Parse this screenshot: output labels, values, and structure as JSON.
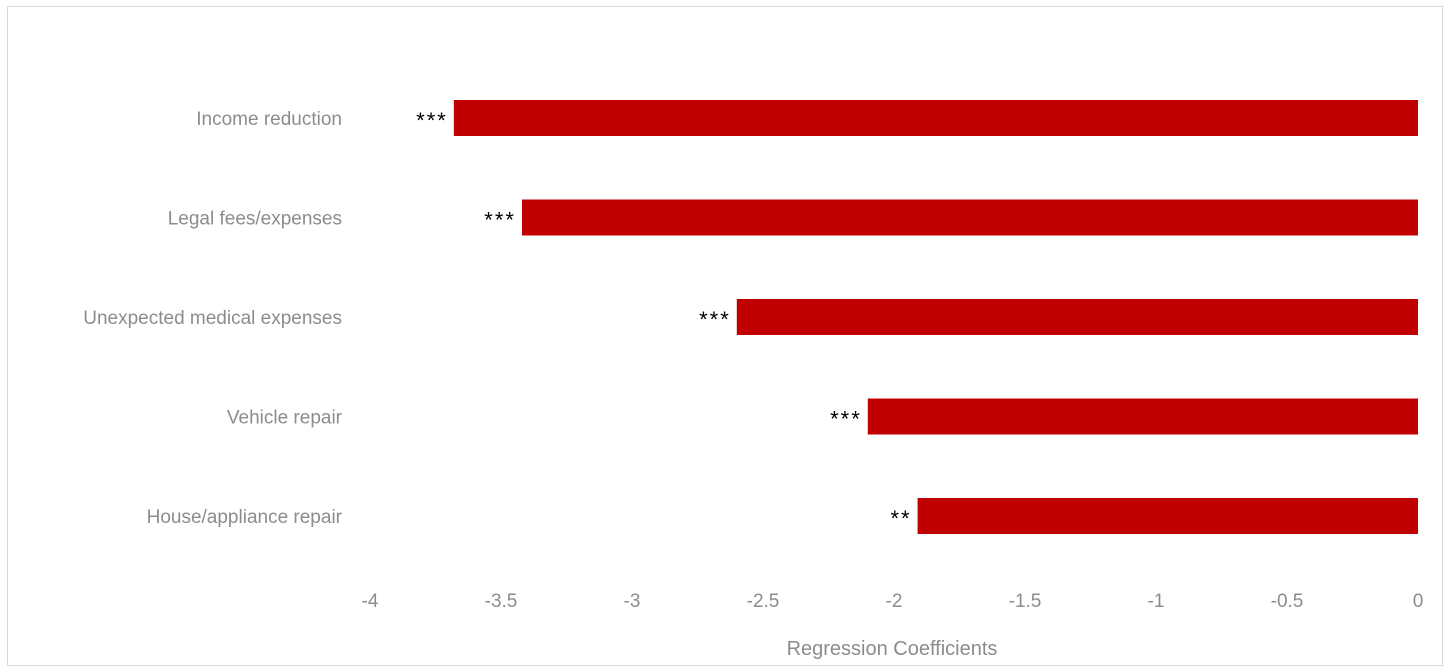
{
  "chart_data": {
    "type": "bar",
    "orientation": "horizontal",
    "categories": [
      "Income reduction",
      "Legal fees/expenses",
      "Unexpected medical expenses",
      "Vehicle repair",
      "House/appliance repair"
    ],
    "values": [
      -3.68,
      -3.42,
      -2.6,
      -2.1,
      -1.91
    ],
    "significance": [
      "***",
      "***",
      "***",
      "***",
      "**"
    ],
    "xlim": [
      -4,
      0
    ],
    "xticks": [
      -4,
      -3.5,
      -3,
      -2.5,
      -2,
      -1.5,
      -1,
      -0.5,
      0
    ],
    "xtick_labels": [
      "-4",
      "-3.5",
      "-3",
      "-2.5",
      "-2",
      "-1.5",
      "-1",
      "-0.5",
      "0"
    ],
    "xlabel": "Regression Coefficients",
    "ylabel": "",
    "title": "",
    "grid": false,
    "legend": "none",
    "bar_color": "#c00000"
  }
}
